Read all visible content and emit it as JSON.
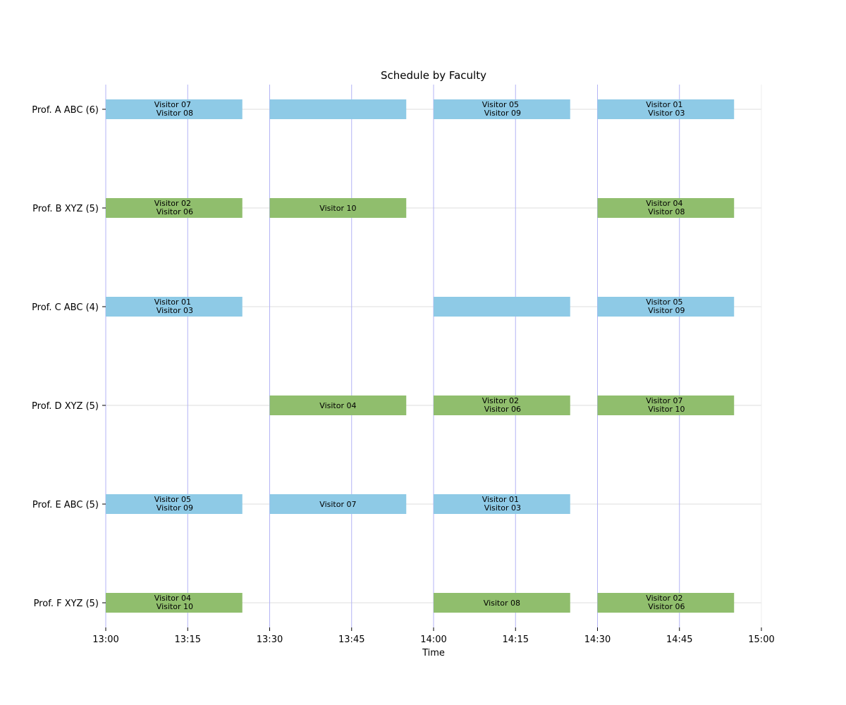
{
  "chart_data": {
    "type": "bar",
    "orientation": "horizontal-timeline",
    "title": "Schedule by Faculty",
    "xlabel": "Time",
    "ylabel": "",
    "x_ticks": [
      "13:00",
      "13:15",
      "13:30",
      "13:45",
      "14:00",
      "14:15",
      "14:30",
      "14:45",
      "15:00"
    ],
    "x_range": [
      "13:00",
      "15:00"
    ],
    "colors": {
      "ABC": "#8ecae6",
      "XYZ": "#90be6d",
      "vertical_grid": "#b3b3f5",
      "horizontal_grid": "#dcdcdc"
    },
    "grid": true,
    "faculty": [
      {
        "label": "Prof. A ABC (6)",
        "group": "ABC",
        "slots": [
          {
            "start": "13:00",
            "end": "13:25",
            "visitors": [
              "Visitor 07",
              "Visitor 08"
            ]
          },
          {
            "start": "13:30",
            "end": "13:55",
            "visitors": []
          },
          {
            "start": "14:00",
            "end": "14:25",
            "visitors": [
              "Visitor 05",
              "Visitor 09"
            ]
          },
          {
            "start": "14:30",
            "end": "14:55",
            "visitors": [
              "Visitor 01",
              "Visitor 03"
            ]
          }
        ]
      },
      {
        "label": "Prof. B XYZ (5)",
        "group": "XYZ",
        "slots": [
          {
            "start": "13:00",
            "end": "13:25",
            "visitors": [
              "Visitor 02",
              "Visitor 06"
            ]
          },
          {
            "start": "13:30",
            "end": "13:55",
            "visitors": [
              "Visitor 10"
            ]
          },
          {
            "start": "14:30",
            "end": "14:55",
            "visitors": [
              "Visitor 04",
              "Visitor 08"
            ]
          }
        ]
      },
      {
        "label": "Prof. C ABC (4)",
        "group": "ABC",
        "slots": [
          {
            "start": "13:00",
            "end": "13:25",
            "visitors": [
              "Visitor 01",
              "Visitor 03"
            ]
          },
          {
            "start": "14:00",
            "end": "14:25",
            "visitors": []
          },
          {
            "start": "14:30",
            "end": "14:55",
            "visitors": [
              "Visitor 05",
              "Visitor 09"
            ]
          }
        ]
      },
      {
        "label": "Prof. D XYZ (5)",
        "group": "XYZ",
        "slots": [
          {
            "start": "13:30",
            "end": "13:55",
            "visitors": [
              "Visitor 04"
            ]
          },
          {
            "start": "14:00",
            "end": "14:25",
            "visitors": [
              "Visitor 02",
              "Visitor 06"
            ]
          },
          {
            "start": "14:30",
            "end": "14:55",
            "visitors": [
              "Visitor 07",
              "Visitor 10"
            ]
          }
        ]
      },
      {
        "label": "Prof. E ABC (5)",
        "group": "ABC",
        "slots": [
          {
            "start": "13:00",
            "end": "13:25",
            "visitors": [
              "Visitor 05",
              "Visitor 09"
            ]
          },
          {
            "start": "13:30",
            "end": "13:55",
            "visitors": [
              "Visitor 07"
            ]
          },
          {
            "start": "14:00",
            "end": "14:25",
            "visitors": [
              "Visitor 01",
              "Visitor 03"
            ]
          }
        ]
      },
      {
        "label": "Prof. F XYZ (5)",
        "group": "XYZ",
        "slots": [
          {
            "start": "13:00",
            "end": "13:25",
            "visitors": [
              "Visitor 04",
              "Visitor 10"
            ]
          },
          {
            "start": "14:00",
            "end": "14:25",
            "visitors": [
              "Visitor 08"
            ]
          },
          {
            "start": "14:30",
            "end": "14:55",
            "visitors": [
              "Visitor 02",
              "Visitor 06"
            ]
          }
        ]
      }
    ]
  }
}
